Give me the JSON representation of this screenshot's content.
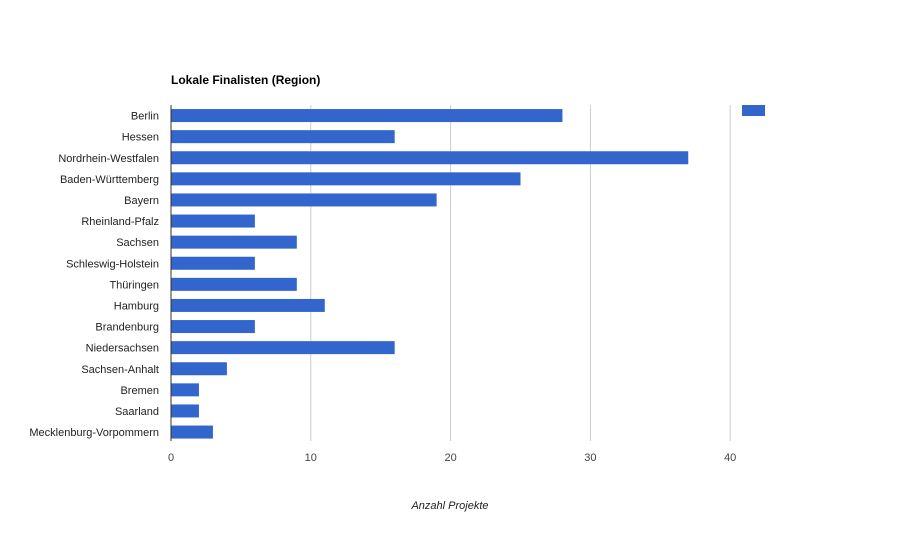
{
  "chart_data": {
    "type": "bar",
    "orientation": "horizontal",
    "title": "Lokale Finalisten (Region)",
    "xlabel": "Anzahl Projekte",
    "ylabel": "",
    "categories": [
      "Berlin",
      "Hessen",
      "Nordrhein-Westfalen",
      "Baden-Württemberg",
      "Bayern",
      "Rheinland-Pfalz",
      "Sachsen",
      "Schleswig-Holstein",
      "Thüringen",
      "Hamburg",
      "Brandenburg",
      "Niedersachsen",
      "Sachsen-Anhalt",
      "Bremen",
      "Saarland",
      "Mecklenburg-Vorpommern"
    ],
    "values": [
      28,
      16,
      37,
      25,
      19,
      6,
      9,
      6,
      9,
      11,
      6,
      16,
      4,
      2,
      2,
      3
    ],
    "xlim": [
      0,
      40
    ],
    "xticks": [
      "0",
      "10",
      "20",
      "30",
      "40"
    ],
    "grid": true,
    "legend": "top-right",
    "bar_color": "#3366cc"
  }
}
